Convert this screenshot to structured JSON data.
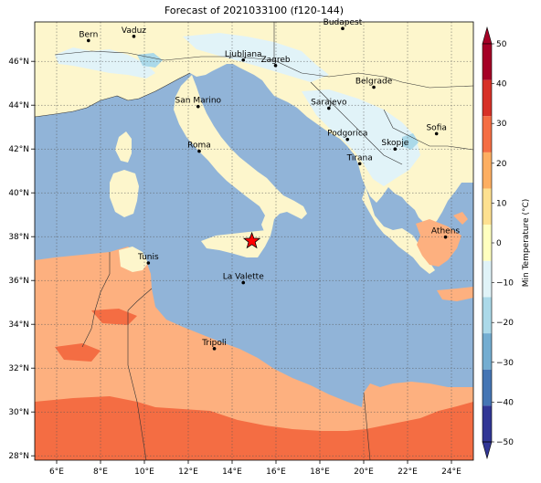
{
  "title": "Forecast of 2021033100 (f120-144)",
  "map": {
    "lon_range": [
      5,
      25
    ],
    "lat_range": [
      27.8,
      47.8
    ],
    "x_ticks": [
      "6°E",
      "8°E",
      "10°E",
      "12°E",
      "14°E",
      "16°E",
      "18°E",
      "20°E",
      "22°E",
      "24°E"
    ],
    "y_ticks": [
      "28°N",
      "30°N",
      "32°N",
      "34°N",
      "36°N",
      "38°N",
      "40°N",
      "42°N",
      "44°N",
      "46°N"
    ],
    "gridlines": true,
    "colors": {
      "sea": "#91b4d8",
      "cold": "#e1f3f8",
      "mild": "#fdf6cc",
      "warm": "#fdb07f",
      "hot": "#f46d43",
      "cool_sea": "#abd9e9"
    },
    "marker": {
      "name": "star",
      "lon": 14.9,
      "lat": 37.8,
      "color": "#ff0000"
    }
  },
  "cities": [
    {
      "name": "Bern",
      "lon": 7.45,
      "lat": 46.95
    },
    {
      "name": "Vaduz",
      "lon": 9.52,
      "lat": 47.14
    },
    {
      "name": "Budapest",
      "lon": 19.04,
      "lat": 47.5
    },
    {
      "name": "Ljubljana",
      "lon": 14.51,
      "lat": 46.06
    },
    {
      "name": "Zagreb",
      "lon": 15.98,
      "lat": 45.81
    },
    {
      "name": "Belgrade",
      "lon": 20.46,
      "lat": 44.82
    },
    {
      "name": "San Marino",
      "lon": 12.45,
      "lat": 43.94
    },
    {
      "name": "Sarajevo",
      "lon": 18.41,
      "lat": 43.86
    },
    {
      "name": "Sofia",
      "lon": 23.32,
      "lat": 42.7
    },
    {
      "name": "Roma",
      "lon": 12.5,
      "lat": 41.9
    },
    {
      "name": "Podgorica",
      "lon": 19.26,
      "lat": 42.44
    },
    {
      "name": "Skopje",
      "lon": 21.43,
      "lat": 42.0
    },
    {
      "name": "Tirana",
      "lon": 19.82,
      "lat": 41.33
    },
    {
      "name": "Athens",
      "lon": 23.73,
      "lat": 37.98
    },
    {
      "name": "Tunis",
      "lon": 10.18,
      "lat": 36.8
    },
    {
      "name": "La Valette",
      "lon": 14.51,
      "lat": 35.9
    },
    {
      "name": "Tripoli",
      "lon": 13.19,
      "lat": 32.89
    }
  ],
  "colorbar": {
    "label": "Min Temperature (°C)",
    "ticks": [
      "50",
      "40",
      "30",
      "20",
      "10",
      "0",
      "−10",
      "−20",
      "−30",
      "−40",
      "−50"
    ],
    "colors": [
      "#a50026",
      "#d73027",
      "#f46d43",
      "#fdae61",
      "#fee090",
      "#ffffbf",
      "#e0f3f8",
      "#abd9e9",
      "#74add1",
      "#4575b4",
      "#313695"
    ],
    "extend": "both"
  }
}
